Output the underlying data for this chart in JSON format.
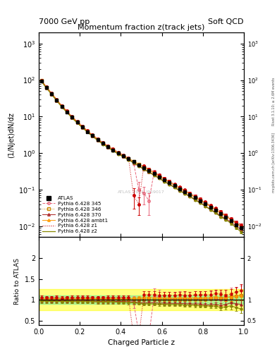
{
  "title_main": "Momentum fraction z(track jets)",
  "header_left": "7000 GeV pp",
  "header_right": "Soft QCD",
  "ylabel_main": "(1/Njet)dN/dz",
  "ylabel_ratio": "Ratio to ATLAS",
  "xlabel": "Charged Particle z",
  "right_label_top": "Rivet 3.1.10; ≥ 2.6M events",
  "right_label_bot": "mcplots.cern.ch [arXiv:1306.3436]",
  "watermark": "ATLAS_2011_I919017",
  "x_data": [
    0.0125,
    0.0375,
    0.0625,
    0.0875,
    0.1125,
    0.1375,
    0.1625,
    0.1875,
    0.2125,
    0.2375,
    0.2625,
    0.2875,
    0.3125,
    0.3375,
    0.3625,
    0.3875,
    0.4125,
    0.4375,
    0.4625,
    0.4875,
    0.5125,
    0.5375,
    0.5625,
    0.5875,
    0.6125,
    0.6375,
    0.6625,
    0.6875,
    0.7125,
    0.7375,
    0.7625,
    0.7875,
    0.8125,
    0.8375,
    0.8625,
    0.8875,
    0.9125,
    0.9375,
    0.9625,
    0.9875
  ],
  "atlas_y": [
    95.0,
    62.0,
    42.0,
    28.0,
    19.0,
    13.5,
    9.5,
    7.0,
    5.2,
    3.9,
    3.0,
    2.35,
    1.85,
    1.5,
    1.22,
    1.0,
    0.84,
    0.7,
    0.58,
    0.48,
    0.4,
    0.33,
    0.275,
    0.225,
    0.185,
    0.155,
    0.128,
    0.105,
    0.088,
    0.073,
    0.06,
    0.05,
    0.041,
    0.033,
    0.027,
    0.022,
    0.018,
    0.014,
    0.011,
    0.009
  ],
  "atlas_yerr": [
    3.0,
    2.0,
    1.3,
    0.9,
    0.6,
    0.4,
    0.3,
    0.22,
    0.16,
    0.12,
    0.09,
    0.07,
    0.055,
    0.045,
    0.037,
    0.03,
    0.025,
    0.021,
    0.017,
    0.014,
    0.012,
    0.01,
    0.008,
    0.007,
    0.006,
    0.005,
    0.004,
    0.003,
    0.003,
    0.002,
    0.002,
    0.002,
    0.0015,
    0.001,
    0.001,
    0.001,
    0.001,
    0.001,
    0.0008,
    0.0007
  ],
  "py345_y": [
    98.0,
    64.0,
    43.5,
    29.0,
    19.5,
    14.0,
    9.8,
    7.2,
    5.4,
    4.0,
    3.1,
    2.4,
    1.9,
    1.55,
    1.26,
    1.03,
    0.87,
    0.72,
    0.55,
    0.1,
    0.08,
    0.05,
    0.3,
    0.24,
    0.19,
    0.16,
    0.13,
    0.11,
    0.09,
    0.075,
    0.062,
    0.051,
    0.042,
    0.034,
    0.028,
    0.022,
    0.019,
    0.015,
    0.012,
    0.01
  ],
  "py346_y": [
    96.0,
    63.0,
    42.5,
    28.5,
    19.2,
    13.7,
    9.6,
    7.1,
    5.3,
    3.95,
    3.05,
    2.38,
    1.87,
    1.52,
    1.24,
    1.01,
    0.85,
    0.71,
    0.59,
    0.49,
    0.41,
    0.34,
    0.28,
    0.23,
    0.188,
    0.158,
    0.13,
    0.107,
    0.09,
    0.074,
    0.061,
    0.051,
    0.042,
    0.034,
    0.028,
    0.023,
    0.019,
    0.015,
    0.012,
    0.01
  ],
  "py370_y": [
    93.0,
    61.0,
    41.0,
    27.5,
    18.5,
    13.2,
    9.2,
    6.8,
    5.05,
    3.8,
    2.9,
    2.27,
    1.78,
    1.45,
    1.18,
    0.96,
    0.81,
    0.67,
    0.55,
    0.45,
    0.37,
    0.31,
    0.255,
    0.208,
    0.17,
    0.142,
    0.117,
    0.096,
    0.08,
    0.066,
    0.054,
    0.045,
    0.036,
    0.029,
    0.024,
    0.019,
    0.016,
    0.013,
    0.01,
    0.008
  ],
  "pyambt1_y": [
    97.0,
    63.5,
    43.0,
    28.8,
    19.4,
    13.8,
    9.7,
    7.15,
    5.35,
    4.02,
    3.08,
    2.42,
    1.9,
    1.54,
    1.26,
    1.03,
    0.86,
    0.72,
    0.6,
    0.5,
    0.42,
    0.35,
    0.288,
    0.236,
    0.193,
    0.162,
    0.133,
    0.11,
    0.092,
    0.076,
    0.063,
    0.052,
    0.043,
    0.035,
    0.029,
    0.023,
    0.019,
    0.015,
    0.012,
    0.01
  ],
  "pyz1_y": [
    100.0,
    65.0,
    44.0,
    29.5,
    19.8,
    14.2,
    10.0,
    7.4,
    5.5,
    4.1,
    3.15,
    2.46,
    1.94,
    1.58,
    1.29,
    1.06,
    0.89,
    0.74,
    0.07,
    0.04,
    0.45,
    0.37,
    0.31,
    0.25,
    0.205,
    0.172,
    0.142,
    0.117,
    0.098,
    0.081,
    0.067,
    0.056,
    0.046,
    0.037,
    0.031,
    0.025,
    0.02,
    0.016,
    0.013,
    0.011
  ],
  "pyz2_y": [
    92.0,
    60.0,
    40.5,
    27.0,
    18.2,
    13.0,
    9.1,
    6.7,
    4.98,
    3.74,
    2.86,
    2.23,
    1.75,
    1.42,
    1.16,
    0.94,
    0.79,
    0.65,
    0.54,
    0.44,
    0.36,
    0.3,
    0.247,
    0.202,
    0.165,
    0.138,
    0.113,
    0.093,
    0.077,
    0.064,
    0.052,
    0.043,
    0.035,
    0.028,
    0.023,
    0.018,
    0.015,
    0.012,
    0.009,
    0.007
  ],
  "py345_yerr": [
    3.0,
    2.0,
    1.4,
    0.9,
    0.6,
    0.4,
    0.3,
    0.22,
    0.17,
    0.12,
    0.09,
    0.07,
    0.06,
    0.05,
    0.04,
    0.03,
    0.025,
    0.02,
    0.08,
    0.06,
    0.04,
    0.03,
    0.05,
    0.04,
    0.03,
    0.025,
    0.02,
    0.017,
    0.014,
    0.012,
    0.01,
    0.008,
    0.007,
    0.006,
    0.005,
    0.004,
    0.003,
    0.003,
    0.002,
    0.002
  ],
  "py346_yerr": [
    3.0,
    2.0,
    1.3,
    0.9,
    0.6,
    0.4,
    0.3,
    0.22,
    0.16,
    0.12,
    0.09,
    0.07,
    0.055,
    0.045,
    0.037,
    0.03,
    0.025,
    0.021,
    0.018,
    0.015,
    0.012,
    0.01,
    0.008,
    0.007,
    0.006,
    0.005,
    0.004,
    0.003,
    0.003,
    0.002,
    0.002,
    0.002,
    0.0015,
    0.001,
    0.001,
    0.001,
    0.001,
    0.001,
    0.0008,
    0.0007
  ],
  "py370_yerr": [
    3.0,
    1.9,
    1.3,
    0.85,
    0.58,
    0.41,
    0.29,
    0.21,
    0.16,
    0.12,
    0.09,
    0.07,
    0.055,
    0.044,
    0.036,
    0.029,
    0.024,
    0.02,
    0.017,
    0.014,
    0.011,
    0.009,
    0.008,
    0.006,
    0.005,
    0.004,
    0.004,
    0.003,
    0.002,
    0.002,
    0.002,
    0.001,
    0.001,
    0.001,
    0.001,
    0.001,
    0.001,
    0.001,
    0.0008,
    0.0006
  ],
  "pyambt1_yerr": [
    3.0,
    2.0,
    1.35,
    0.88,
    0.6,
    0.42,
    0.3,
    0.22,
    0.16,
    0.12,
    0.09,
    0.07,
    0.056,
    0.045,
    0.037,
    0.03,
    0.025,
    0.021,
    0.018,
    0.015,
    0.012,
    0.01,
    0.008,
    0.007,
    0.006,
    0.005,
    0.004,
    0.003,
    0.003,
    0.002,
    0.002,
    0.002,
    0.0015,
    0.001,
    0.001,
    0.001,
    0.001,
    0.001,
    0.0008,
    0.0007
  ],
  "pyz1_yerr": [
    3.2,
    2.1,
    1.4,
    0.95,
    0.62,
    0.44,
    0.31,
    0.23,
    0.17,
    0.13,
    0.1,
    0.08,
    0.06,
    0.05,
    0.04,
    0.03,
    0.027,
    0.022,
    0.04,
    0.02,
    0.03,
    0.025,
    0.02,
    0.016,
    0.013,
    0.011,
    0.009,
    0.008,
    0.007,
    0.006,
    0.005,
    0.004,
    0.003,
    0.003,
    0.002,
    0.002,
    0.002,
    0.001,
    0.001,
    0.001
  ],
  "pyz2_yerr": [
    2.8,
    1.85,
    1.25,
    0.82,
    0.56,
    0.39,
    0.28,
    0.21,
    0.155,
    0.117,
    0.088,
    0.069,
    0.054,
    0.043,
    0.035,
    0.028,
    0.024,
    0.019,
    0.016,
    0.013,
    0.011,
    0.009,
    0.007,
    0.006,
    0.005,
    0.004,
    0.003,
    0.003,
    0.002,
    0.002,
    0.002,
    0.001,
    0.001,
    0.001,
    0.001,
    0.001,
    0.001,
    0.001,
    0.0007,
    0.0006
  ],
  "colors": {
    "atlas": "#000000",
    "py345": "#e8667a",
    "py346": "#cc8800",
    "py370": "#aa2222",
    "pyambt1": "#ff9900",
    "pyz1": "#cc0000",
    "pyz2": "#888800"
  },
  "ratio_band_green": [
    0.9,
    1.1
  ],
  "ratio_band_yellow": [
    0.75,
    1.25
  ],
  "ylim_main": [
    0.005,
    2000
  ],
  "ylim_ratio": [
    0.4,
    2.5
  ],
  "xlim": [
    0.0,
    1.0
  ]
}
